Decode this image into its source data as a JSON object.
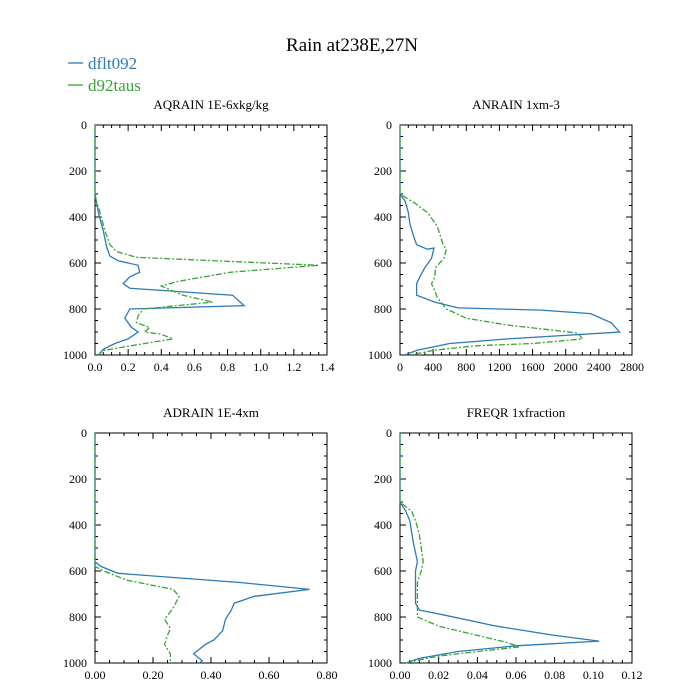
{
  "title": "Rain at238E,27N",
  "legend": [
    {
      "name": "dflt092",
      "color": "#2b7bba",
      "dash": false
    },
    {
      "name": "d92taus",
      "color": "#3aa335",
      "dash": true
    }
  ],
  "chart_data": [
    {
      "type": "line",
      "title": "AQRAIN  1E-6xkg/kg",
      "xlim": [
        0,
        1.4
      ],
      "ylim": [
        0,
        1000
      ],
      "y_inverted": true,
      "xticks": [
        "0.0",
        "0.2",
        "0.4",
        "0.6",
        "0.8",
        "1.0",
        "1.2",
        "1.4"
      ],
      "xtick_values": [
        0,
        0.2,
        0.4,
        0.6,
        0.8,
        1.0,
        1.2,
        1.4
      ],
      "yticks": [
        "0",
        "200",
        "400",
        "600",
        "800",
        "1000"
      ],
      "ytick_values": [
        0,
        200,
        400,
        600,
        800,
        1000
      ],
      "series": [
        {
          "name": "dflt092",
          "points": [
            [
              0,
              0
            ],
            [
              0,
              300
            ],
            [
              0.02,
              380
            ],
            [
              0.05,
              460
            ],
            [
              0.07,
              530
            ],
            [
              0.09,
              570
            ],
            [
              0.14,
              590
            ],
            [
              0.26,
              610
            ],
            [
              0.27,
              640
            ],
            [
              0.21,
              660
            ],
            [
              0.17,
              690
            ],
            [
              0.21,
              710
            ],
            [
              0.83,
              740
            ],
            [
              0.9,
              785
            ],
            [
              0.21,
              800
            ],
            [
              0.18,
              840
            ],
            [
              0.22,
              880
            ],
            [
              0.26,
              900
            ],
            [
              0.2,
              930
            ],
            [
              0.12,
              950
            ],
            [
              0.05,
              975
            ],
            [
              0.02,
              1000
            ]
          ]
        },
        {
          "name": "d92taus",
          "points": [
            [
              0,
              0
            ],
            [
              0,
              310
            ],
            [
              0.03,
              380
            ],
            [
              0.06,
              460
            ],
            [
              0.09,
              520
            ],
            [
              0.13,
              550
            ],
            [
              0.25,
              575
            ],
            [
              1.35,
              610
            ],
            [
              0.82,
              640
            ],
            [
              0.5,
              680
            ],
            [
              0.4,
              700
            ],
            [
              0.53,
              740
            ],
            [
              0.71,
              770
            ],
            [
              0.29,
              800
            ],
            [
              0.26,
              830
            ],
            [
              0.25,
              860
            ],
            [
              0.33,
              880
            ],
            [
              0.3,
              900
            ],
            [
              0.4,
              910
            ],
            [
              0.47,
              930
            ],
            [
              0.3,
              950
            ],
            [
              0.05,
              980
            ],
            [
              0.02,
              1000
            ]
          ]
        }
      ]
    },
    {
      "type": "line",
      "title": "ANRAIN  1xm-3",
      "xlim": [
        0,
        2800
      ],
      "ylim": [
        0,
        1000
      ],
      "y_inverted": true,
      "xticks": [
        "0",
        "400",
        "800",
        "1200",
        "1600",
        "2000",
        "2400",
        "2800"
      ],
      "xtick_values": [
        0,
        400,
        800,
        1200,
        1600,
        2000,
        2400,
        2800
      ],
      "yticks": [
        "0",
        "200",
        "400",
        "600",
        "800",
        "1000"
      ],
      "ytick_values": [
        0,
        200,
        400,
        600,
        800,
        1000
      ],
      "series": [
        {
          "name": "dflt092",
          "points": [
            [
              0,
              0
            ],
            [
              0,
              300
            ],
            [
              60,
              330
            ],
            [
              100,
              380
            ],
            [
              120,
              430
            ],
            [
              160,
              480
            ],
            [
              200,
              520
            ],
            [
              330,
              540
            ],
            [
              410,
              535
            ],
            [
              380,
              580
            ],
            [
              300,
              620
            ],
            [
              240,
              660
            ],
            [
              200,
              690
            ],
            [
              200,
              740
            ],
            [
              420,
              770
            ],
            [
              700,
              795
            ],
            [
              1700,
              805
            ],
            [
              2300,
              820
            ],
            [
              2550,
              860
            ],
            [
              2650,
              900
            ],
            [
              1300,
              930
            ],
            [
              600,
              950
            ],
            [
              200,
              980
            ],
            [
              60,
              1000
            ]
          ]
        },
        {
          "name": "d92taus",
          "points": [
            [
              0,
              0
            ],
            [
              0,
              300
            ],
            [
              180,
              340
            ],
            [
              330,
              380
            ],
            [
              450,
              440
            ],
            [
              520,
              520
            ],
            [
              560,
              540
            ],
            [
              530,
              580
            ],
            [
              430,
              620
            ],
            [
              420,
              660
            ],
            [
              380,
              690
            ],
            [
              420,
              720
            ],
            [
              450,
              750
            ],
            [
              560,
              800
            ],
            [
              800,
              840
            ],
            [
              1300,
              870
            ],
            [
              1800,
              890
            ],
            [
              2150,
              905
            ],
            [
              2200,
              930
            ],
            [
              1600,
              950
            ],
            [
              900,
              960
            ],
            [
              400,
              980
            ],
            [
              120,
              1000
            ]
          ]
        }
      ]
    },
    {
      "type": "line",
      "title": "ADRAIN  1E-4xm",
      "xlim": [
        0,
        0.8
      ],
      "ylim": [
        0,
        1000
      ],
      "y_inverted": true,
      "xticks": [
        "0.00",
        "0.20",
        "0.40",
        "0.60",
        "0.80"
      ],
      "xtick_values": [
        0,
        0.2,
        0.4,
        0.6,
        0.8
      ],
      "yticks": [
        "0",
        "200",
        "400",
        "600",
        "800",
        "1000"
      ],
      "ytick_values": [
        0,
        200,
        400,
        600,
        800,
        1000
      ],
      "series": [
        {
          "name": "dflt092",
          "points": [
            [
              0,
              0
            ],
            [
              0,
              560
            ],
            [
              0.02,
              580
            ],
            [
              0.08,
              610
            ],
            [
              0.5,
              650
            ],
            [
              0.74,
              680
            ],
            [
              0.55,
              710
            ],
            [
              0.48,
              740
            ],
            [
              0.47,
              770
            ],
            [
              0.45,
              810
            ],
            [
              0.44,
              860
            ],
            [
              0.41,
              900
            ],
            [
              0.38,
              920
            ],
            [
              0.35,
              950
            ],
            [
              0.34,
              960
            ],
            [
              0.37,
              990
            ],
            [
              0.36,
              1000
            ]
          ]
        },
        {
          "name": "d92taus",
          "points": [
            [
              0,
              0
            ],
            [
              0,
              580
            ],
            [
              0.03,
              600
            ],
            [
              0.11,
              640
            ],
            [
              0.27,
              680
            ],
            [
              0.29,
              710
            ],
            [
              0.27,
              760
            ],
            [
              0.24,
              810
            ],
            [
              0.26,
              850
            ],
            [
              0.25,
              880
            ],
            [
              0.24,
              920
            ],
            [
              0.26,
              960
            ],
            [
              0.26,
              1000
            ]
          ]
        }
      ]
    },
    {
      "type": "line",
      "title": "FREQR  1xfraction",
      "xlim": [
        0,
        0.12
      ],
      "ylim": [
        0,
        1000
      ],
      "y_inverted": true,
      "xticks": [
        "0.00",
        "0.02",
        "0.04",
        "0.06",
        "0.08",
        "0.10",
        "0.12"
      ],
      "xtick_values": [
        0,
        0.02,
        0.04,
        0.06,
        0.08,
        0.1,
        0.12
      ],
      "yticks": [
        "0",
        "200",
        "400",
        "600",
        "800",
        "1000"
      ],
      "ytick_values": [
        0,
        200,
        400,
        600,
        800,
        1000
      ],
      "series": [
        {
          "name": "dflt092",
          "points": [
            [
              0,
              0
            ],
            [
              0,
              300
            ],
            [
              0.003,
              340
            ],
            [
              0.005,
              380
            ],
            [
              0.006,
              430
            ],
            [
              0.007,
              480
            ],
            [
              0.008,
              520
            ],
            [
              0.009,
              560
            ],
            [
              0.008,
              600
            ],
            [
              0.008,
              650
            ],
            [
              0.008,
              700
            ],
            [
              0.008,
              740
            ],
            [
              0.01,
              770
            ],
            [
              0.022,
              790
            ],
            [
              0.05,
              840
            ],
            [
              0.08,
              880
            ],
            [
              0.103,
              905
            ],
            [
              0.06,
              925
            ],
            [
              0.03,
              950
            ],
            [
              0.01,
              980
            ],
            [
              0.003,
              1000
            ]
          ]
        },
        {
          "name": "d92taus",
          "points": [
            [
              0,
              0
            ],
            [
              0,
              300
            ],
            [
              0.006,
              340
            ],
            [
              0.008,
              380
            ],
            [
              0.01,
              440
            ],
            [
              0.011,
              500
            ],
            [
              0.012,
              560
            ],
            [
              0.011,
              600
            ],
            [
              0.009,
              650
            ],
            [
              0.009,
              700
            ],
            [
              0.009,
              760
            ],
            [
              0.009,
              800
            ],
            [
              0.02,
              840
            ],
            [
              0.04,
              880
            ],
            [
              0.055,
              910
            ],
            [
              0.062,
              930
            ],
            [
              0.04,
              950
            ],
            [
              0.02,
              970
            ],
            [
              0.008,
              990
            ],
            [
              0.003,
              1000
            ]
          ]
        }
      ]
    }
  ]
}
